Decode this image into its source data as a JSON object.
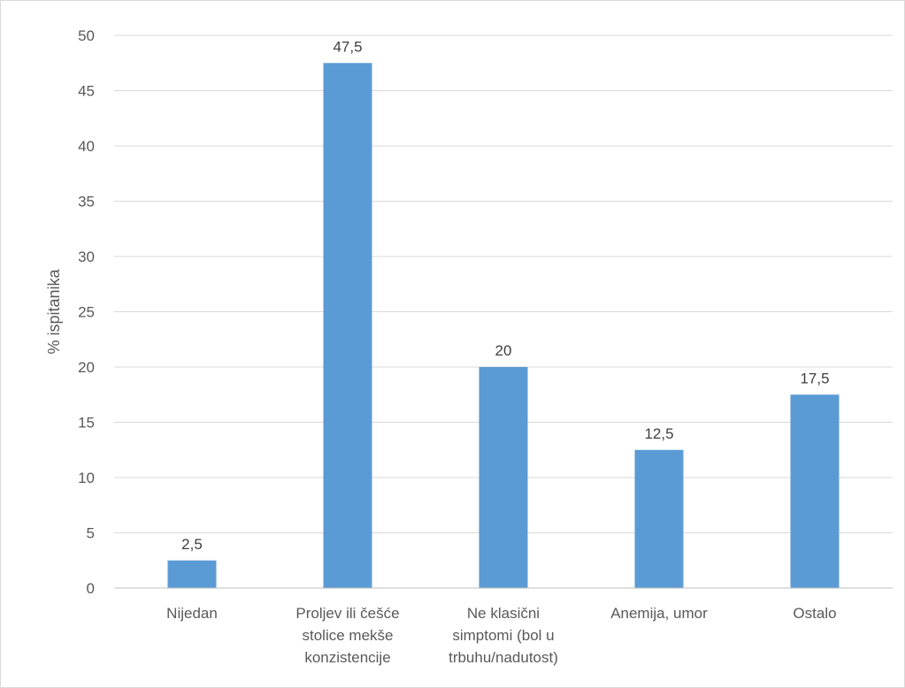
{
  "chart_data": {
    "type": "bar",
    "title": "",
    "xlabel": "",
    "ylabel": "% ispitanika",
    "ylim": [
      0,
      50
    ],
    "yticks": [
      0,
      5,
      10,
      15,
      20,
      25,
      30,
      35,
      40,
      45,
      50
    ],
    "grid": true,
    "legend": "none",
    "categories": [
      [
        "Nijedan"
      ],
      [
        "Proljev ili češće",
        "stolice mekše",
        "konzistencije"
      ],
      [
        "Ne klasični",
        "simptomi (bol u",
        "trbuhu/nadutost)"
      ],
      [
        "Anemija, umor"
      ],
      [
        "Ostalo"
      ]
    ],
    "values": [
      2.5,
      47.5,
      20,
      12.5,
      17.5
    ],
    "data_labels": [
      "2,5",
      "47,5",
      "20",
      "12,5",
      "17,5"
    ],
    "colors": {
      "bar": "#5b9bd5",
      "grid": "#d9d9d9",
      "axis": "#bfbfbf"
    }
  }
}
